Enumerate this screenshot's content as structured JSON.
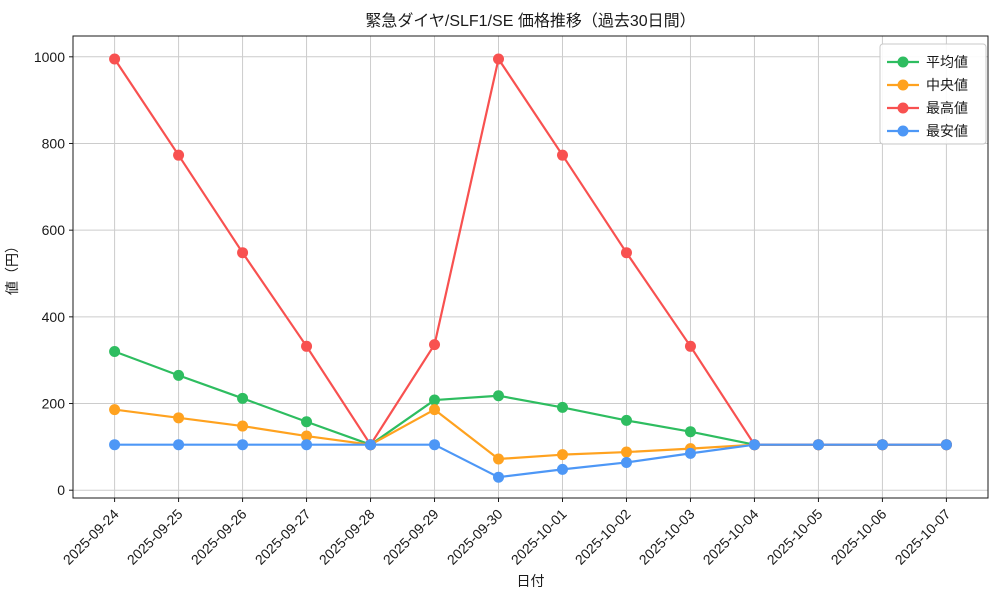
{
  "figure": {
    "background": "#ffffff",
    "grid_color": "#cccccc",
    "spine_color": "#1a1a1a",
    "text_color": "#1a1a1a",
    "legend_border_color": "#c8c8c8"
  },
  "chart_data": {
    "type": "line",
    "title": "緊急ダイヤ/SLF1/SE 価格推移（過去30日間）",
    "xlabel": "日付",
    "ylabel": "値（円）",
    "grid": true,
    "legend_position": "upper right",
    "ylim": [
      -18,
      1048
    ],
    "yticks": [
      0,
      200,
      400,
      600,
      800,
      1000
    ],
    "categories": [
      "2025-09-24",
      "2025-09-25",
      "2025-09-26",
      "2025-09-27",
      "2025-09-28",
      "2025-09-29",
      "2025-09-30",
      "2025-10-01",
      "2025-10-02",
      "2025-10-03",
      "2025-10-04",
      "2025-10-05",
      "2025-10-06",
      "2025-10-07"
    ],
    "series": [
      {
        "name": "平均値",
        "color": "#2EBD60",
        "values": [
          320,
          265,
          212,
          158,
          105,
          208,
          218,
          191,
          161,
          135,
          105,
          105,
          105,
          105
        ]
      },
      {
        "name": "中央値",
        "color": "#FFA21F",
        "values": [
          186,
          167,
          148,
          125,
          105,
          186,
          72,
          82,
          88,
          96,
          105,
          105,
          105,
          105
        ]
      },
      {
        "name": "最高値",
        "color": "#F85150",
        "values": [
          995,
          773,
          548,
          332,
          105,
          336,
          995,
          773,
          548,
          332,
          105,
          105,
          105,
          105
        ]
      },
      {
        "name": "最安値",
        "color": "#4D97F6",
        "values": [
          105,
          105,
          105,
          105,
          105,
          105,
          30,
          48,
          64,
          85,
          105,
          105,
          105,
          105
        ]
      }
    ]
  }
}
